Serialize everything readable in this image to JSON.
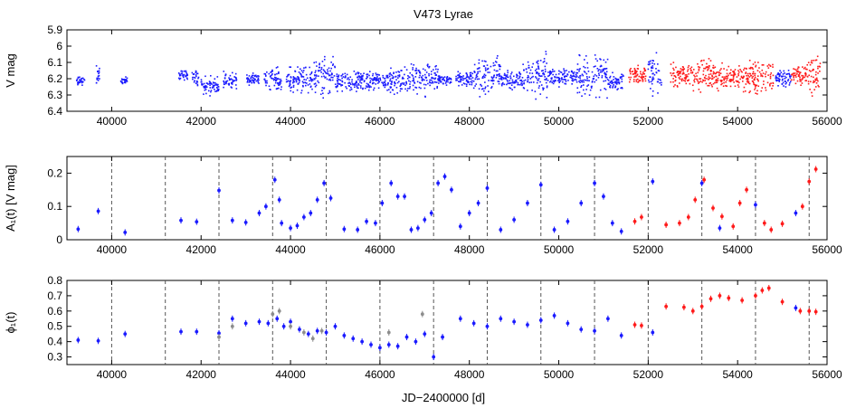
{
  "figure": {
    "title": "V473 Lyrae",
    "xlabel": "JD−2400000 [d]"
  },
  "colors": {
    "blue": "#1a1aff",
    "red": "#ff1a1a",
    "gray": "#8c8c8c",
    "axis": "#000000",
    "dashed_lines": "#555555"
  },
  "chart_data": [
    {
      "type": "scatter",
      "panel": "top",
      "ylabel": "V mag",
      "y_inverted": true,
      "xlim": [
        39000,
        56000
      ],
      "ylim": [
        6.4,
        5.9
      ],
      "xticks": [
        40000,
        42000,
        44000,
        46000,
        48000,
        50000,
        52000,
        54000,
        56000
      ],
      "yticks": [
        5.9,
        6.0,
        6.1,
        6.2,
        6.3,
        6.4
      ],
      "ytick_labels": [
        "5.9",
        "6",
        "6.1",
        "6.2",
        "6.3",
        "6.4"
      ],
      "series": [
        {
          "color": "blue",
          "segments": [
            {
              "x0": 39200,
              "x1": 39400,
              "y0": 6.17,
              "y1": 6.25
            },
            {
              "x0": 39650,
              "x1": 39750,
              "y0": 6.1,
              "y1": 6.27
            },
            {
              "x0": 40200,
              "x1": 40350,
              "y0": 6.18,
              "y1": 6.24
            },
            {
              "x0": 41500,
              "x1": 41700,
              "y0": 6.14,
              "y1": 6.22
            },
            {
              "x0": 41800,
              "x1": 41950,
              "y0": 6.12,
              "y1": 6.27
            },
            {
              "x0": 42000,
              "x1": 42400,
              "y0": 6.17,
              "y1": 6.32
            },
            {
              "x0": 42500,
              "x1": 42800,
              "y0": 6.13,
              "y1": 6.29
            },
            {
              "x0": 43000,
              "x1": 43300,
              "y0": 6.16,
              "y1": 6.25
            },
            {
              "x0": 43400,
              "x1": 43800,
              "y0": 6.11,
              "y1": 6.3
            },
            {
              "x0": 43900,
              "x1": 44500,
              "y0": 6.1,
              "y1": 6.31
            },
            {
              "x0": 44500,
              "x1": 45000,
              "y0": 6.02,
              "y1": 6.34
            },
            {
              "x0": 45000,
              "x1": 45600,
              "y0": 6.12,
              "y1": 6.3
            },
            {
              "x0": 45600,
              "x1": 46200,
              "y0": 6.12,
              "y1": 6.3
            },
            {
              "x0": 46200,
              "x1": 46700,
              "y0": 6.09,
              "y1": 6.33
            },
            {
              "x0": 46700,
              "x1": 47300,
              "y0": 6.05,
              "y1": 6.33
            },
            {
              "x0": 47300,
              "x1": 47600,
              "y0": 6.17,
              "y1": 6.25
            },
            {
              "x0": 47700,
              "x1": 48100,
              "y0": 6.14,
              "y1": 6.26
            },
            {
              "x0": 48100,
              "x1": 48700,
              "y0": 6.01,
              "y1": 6.36
            },
            {
              "x0": 48700,
              "x1": 49200,
              "y0": 6.12,
              "y1": 6.29
            },
            {
              "x0": 49200,
              "x1": 49800,
              "y0": 6.01,
              "y1": 6.36
            },
            {
              "x0": 49800,
              "x1": 50400,
              "y0": 6.11,
              "y1": 6.27
            },
            {
              "x0": 50400,
              "x1": 51100,
              "y0": 6.01,
              "y1": 6.35
            },
            {
              "x0": 51100,
              "x1": 51450,
              "y0": 6.14,
              "y1": 6.3
            },
            {
              "x0": 52000,
              "x1": 52300,
              "y0": 6.02,
              "y1": 6.35
            },
            {
              "x0": 54850,
              "x1": 55200,
              "y0": 6.13,
              "y1": 6.27
            }
          ]
        },
        {
          "color": "red",
          "segments": [
            {
              "x0": 51550,
              "x1": 51950,
              "y0": 6.1,
              "y1": 6.26
            },
            {
              "x0": 52500,
              "x1": 53000,
              "y0": 6.07,
              "y1": 6.28
            },
            {
              "x0": 53000,
              "x1": 53500,
              "y0": 6.04,
              "y1": 6.3
            },
            {
              "x0": 53500,
              "x1": 54200,
              "y0": 6.08,
              "y1": 6.3
            },
            {
              "x0": 54200,
              "x1": 54800,
              "y0": 6.06,
              "y1": 6.33
            },
            {
              "x0": 55200,
              "x1": 55600,
              "y0": 6.07,
              "y1": 6.28
            },
            {
              "x0": 55600,
              "x1": 55850,
              "y0": 5.97,
              "y1": 6.38
            }
          ]
        }
      ]
    },
    {
      "type": "scatter",
      "panel": "middle",
      "ylabel": "A₁(t) [V mag]",
      "xlim": [
        39000,
        56000
      ],
      "ylim": [
        0,
        0.25
      ],
      "xticks": [
        40000,
        42000,
        44000,
        46000,
        48000,
        50000,
        52000,
        54000,
        56000
      ],
      "yticks": [
        0,
        0.1,
        0.2
      ],
      "ytick_labels": [
        "0",
        "0.1",
        "0.2"
      ],
      "cycle_boundaries": [
        40000,
        41200,
        42400,
        43600,
        44800,
        46000,
        47200,
        48400,
        49600,
        50800,
        52000,
        53200,
        54400,
        55600
      ],
      "series": [
        {
          "color": "blue",
          "points": [
            [
              39250,
              0.032
            ],
            [
              39700,
              0.086
            ],
            [
              40300,
              0.022
            ],
            [
              41550,
              0.058
            ],
            [
              41900,
              0.054
            ],
            [
              42400,
              0.148
            ],
            [
              42700,
              0.058
            ],
            [
              43000,
              0.052
            ],
            [
              43300,
              0.08
            ],
            [
              43450,
              0.1
            ],
            [
              43650,
              0.18
            ],
            [
              43750,
              0.12
            ],
            [
              43800,
              0.05
            ],
            [
              44000,
              0.035
            ],
            [
              44150,
              0.042
            ],
            [
              44300,
              0.068
            ],
            [
              44450,
              0.08
            ],
            [
              44600,
              0.12
            ],
            [
              44750,
              0.17
            ],
            [
              44900,
              0.125
            ],
            [
              45200,
              0.032
            ],
            [
              45500,
              0.03
            ],
            [
              45700,
              0.055
            ],
            [
              45900,
              0.05
            ],
            [
              46050,
              0.11
            ],
            [
              46250,
              0.17
            ],
            [
              46400,
              0.13
            ],
            [
              46550,
              0.13
            ],
            [
              46700,
              0.03
            ],
            [
              46850,
              0.035
            ],
            [
              47000,
              0.06
            ],
            [
              47150,
              0.08
            ],
            [
              47300,
              0.17
            ],
            [
              47450,
              0.19
            ],
            [
              47600,
              0.15
            ],
            [
              47800,
              0.04
            ],
            [
              48000,
              0.08
            ],
            [
              48200,
              0.11
            ],
            [
              48400,
              0.155
            ],
            [
              48700,
              0.03
            ],
            [
              49000,
              0.06
            ],
            [
              49300,
              0.11
            ],
            [
              49600,
              0.165
            ],
            [
              49900,
              0.03
            ],
            [
              50200,
              0.055
            ],
            [
              50500,
              0.11
            ],
            [
              50800,
              0.17
            ],
            [
              51000,
              0.13
            ],
            [
              51200,
              0.05
            ],
            [
              51400,
              0.025
            ],
            [
              52100,
              0.175
            ],
            [
              53200,
              0.17
            ],
            [
              53600,
              0.035
            ],
            [
              54400,
              0.105
            ],
            [
              55300,
              0.08
            ]
          ]
        },
        {
          "color": "red",
          "points": [
            [
              51700,
              0.055
            ],
            [
              51850,
              0.068
            ],
            [
              52400,
              0.045
            ],
            [
              52700,
              0.05
            ],
            [
              52900,
              0.068
            ],
            [
              53050,
              0.12
            ],
            [
              53250,
              0.18
            ],
            [
              53450,
              0.095
            ],
            [
              53650,
              0.07
            ],
            [
              53900,
              0.04
            ],
            [
              54050,
              0.11
            ],
            [
              54200,
              0.15
            ],
            [
              54600,
              0.05
            ],
            [
              54750,
              0.03
            ],
            [
              55000,
              0.048
            ],
            [
              55450,
              0.1
            ],
            [
              55600,
              0.175
            ],
            [
              55750,
              0.212
            ]
          ]
        }
      ]
    },
    {
      "type": "scatter",
      "panel": "bottom",
      "ylabel": "ϕ₁(t)",
      "xlim": [
        39000,
        56000
      ],
      "ylim": [
        0.25,
        0.8
      ],
      "xticks": [
        40000,
        42000,
        44000,
        46000,
        48000,
        50000,
        52000,
        54000,
        56000
      ],
      "xtick_labels": [
        "40000",
        "42000",
        "44000",
        "46000",
        "48000",
        "50000",
        "52000",
        "54000",
        "56000"
      ],
      "yticks": [
        0.3,
        0.4,
        0.5,
        0.6,
        0.7,
        0.8
      ],
      "ytick_labels": [
        "0.3",
        "0.4",
        "0.5",
        "0.6",
        "0.7",
        "0.8"
      ],
      "cycle_boundaries": [
        40000,
        41200,
        42400,
        43600,
        44800,
        46000,
        47200,
        48400,
        49600,
        50800,
        52000,
        53200,
        54400,
        55600
      ],
      "series": [
        {
          "color": "blue",
          "points": [
            [
              39250,
              0.41
            ],
            [
              39700,
              0.405
            ],
            [
              40300,
              0.45
            ],
            [
              41550,
              0.465
            ],
            [
              41900,
              0.465
            ],
            [
              42400,
              0.455
            ],
            [
              42700,
              0.55
            ],
            [
              43000,
              0.52
            ],
            [
              43300,
              0.53
            ],
            [
              43500,
              0.52
            ],
            [
              43700,
              0.55
            ],
            [
              43850,
              0.5
            ],
            [
              44000,
              0.53
            ],
            [
              44200,
              0.48
            ],
            [
              44400,
              0.45
            ],
            [
              44600,
              0.47
            ],
            [
              44800,
              0.46
            ],
            [
              45000,
              0.5
            ],
            [
              45200,
              0.44
            ],
            [
              45400,
              0.42
            ],
            [
              45600,
              0.4
            ],
            [
              45800,
              0.38
            ],
            [
              46000,
              0.36
            ],
            [
              46200,
              0.38
            ],
            [
              46400,
              0.37
            ],
            [
              46600,
              0.43
            ],
            [
              46800,
              0.4
            ],
            [
              47000,
              0.45
            ],
            [
              47200,
              0.3
            ],
            [
              47400,
              0.43
            ],
            [
              47800,
              0.55
            ],
            [
              48100,
              0.52
            ],
            [
              48400,
              0.5
            ],
            [
              48700,
              0.55
            ],
            [
              49000,
              0.53
            ],
            [
              49300,
              0.51
            ],
            [
              49600,
              0.54
            ],
            [
              49900,
              0.57
            ],
            [
              50200,
              0.52
            ],
            [
              50500,
              0.48
            ],
            [
              50800,
              0.47
            ],
            [
              51100,
              0.55
            ],
            [
              51400,
              0.44
            ],
            [
              52100,
              0.46
            ],
            [
              55300,
              0.62
            ]
          ]
        },
        {
          "color": "gray",
          "points": [
            [
              42400,
              0.43
            ],
            [
              42700,
              0.5
            ],
            [
              43600,
              0.58
            ],
            [
              43750,
              0.6
            ],
            [
              44000,
              0.5
            ],
            [
              44300,
              0.46
            ],
            [
              44500,
              0.42
            ],
            [
              44700,
              0.47
            ],
            [
              46200,
              0.46
            ],
            [
              46950,
              0.58
            ]
          ]
        },
        {
          "color": "red",
          "points": [
            [
              51700,
              0.51
            ],
            [
              51850,
              0.505
            ],
            [
              52400,
              0.63
            ],
            [
              52800,
              0.625
            ],
            [
              53000,
              0.6
            ],
            [
              53200,
              0.63
            ],
            [
              53400,
              0.68
            ],
            [
              53600,
              0.7
            ],
            [
              53800,
              0.685
            ],
            [
              54100,
              0.67
            ],
            [
              54400,
              0.7
            ],
            [
              54550,
              0.735
            ],
            [
              54700,
              0.75
            ],
            [
              55000,
              0.66
            ],
            [
              55400,
              0.6
            ],
            [
              55600,
              0.6
            ],
            [
              55750,
              0.595
            ]
          ]
        }
      ]
    }
  ]
}
